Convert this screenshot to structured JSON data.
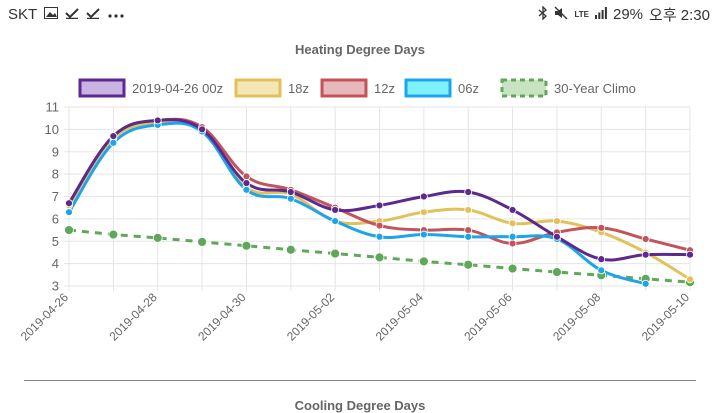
{
  "status_bar": {
    "carrier": "SKT",
    "network": "LTE",
    "battery": "29%",
    "time": "오후 2:30",
    "icons": [
      "image-icon",
      "check-icon",
      "check-icon",
      "more-icon",
      "bluetooth-icon",
      "mute-icon",
      "signal-icon"
    ]
  },
  "chart_data": {
    "type": "line",
    "title": "Heating Degree Days",
    "x": [
      "2019-04-26",
      "2019-04-27",
      "2019-04-28",
      "2019-04-29",
      "2019-04-30",
      "2019-05-01",
      "2019-05-02",
      "2019-05-03",
      "2019-05-04",
      "2019-05-05",
      "2019-05-06",
      "2019-05-07",
      "2019-05-08",
      "2019-05-09",
      "2019-05-10"
    ],
    "x_tick_labels": [
      "2019-04-26",
      "2019-04-28",
      "2019-04-30",
      "2019-05-02",
      "2019-05-04",
      "2019-05-06",
      "2019-05-08",
      "2019-05-10"
    ],
    "ylim": [
      3,
      11
    ],
    "y_ticks": [
      3,
      4,
      5,
      6,
      7,
      8,
      9,
      10,
      11
    ],
    "grid": true,
    "legend_position": "top",
    "series": [
      {
        "name": "2019-04-26 00z",
        "color": "#5b2a8c",
        "fill": "#c9b3e3",
        "dashed": false,
        "values": [
          6.7,
          9.7,
          10.4,
          10.0,
          7.6,
          7.2,
          6.4,
          6.6,
          7.0,
          7.2,
          6.4,
          5.2,
          4.2,
          4.4,
          4.4
        ]
      },
      {
        "name": "18z",
        "color": "#e3c15a",
        "fill": "#f5e6b5",
        "dashed": false,
        "values": [
          6.6,
          9.6,
          10.3,
          10.0,
          7.4,
          7.1,
          5.9,
          5.9,
          6.3,
          6.4,
          5.8,
          5.9,
          5.4,
          4.5,
          3.3
        ]
      },
      {
        "name": "12z",
        "color": "#c2545c",
        "fill": "#e8b7b9",
        "dashed": false,
        "values": [
          6.7,
          9.7,
          10.4,
          10.1,
          7.9,
          7.3,
          6.5,
          5.7,
          5.5,
          5.5,
          4.9,
          5.4,
          5.6,
          5.1,
          4.6
        ]
      },
      {
        "name": "06z",
        "color": "#1ea4e8",
        "fill": "#7ef3fb",
        "dashed": false,
        "values": [
          6.3,
          9.4,
          10.2,
          9.9,
          7.3,
          6.9,
          5.9,
          5.2,
          5.3,
          5.2,
          5.2,
          5.1,
          3.7,
          3.1,
          null
        ]
      },
      {
        "name": "30-Year Climo",
        "color": "#5fa85a",
        "fill": "#c8e3c2",
        "dashed": true,
        "values": [
          5.5,
          5.3,
          5.15,
          4.97,
          4.8,
          4.62,
          4.45,
          4.28,
          4.1,
          3.95,
          3.78,
          3.62,
          3.48,
          3.32,
          3.17
        ]
      }
    ]
  },
  "next_section_title": "Cooling Degree Days"
}
